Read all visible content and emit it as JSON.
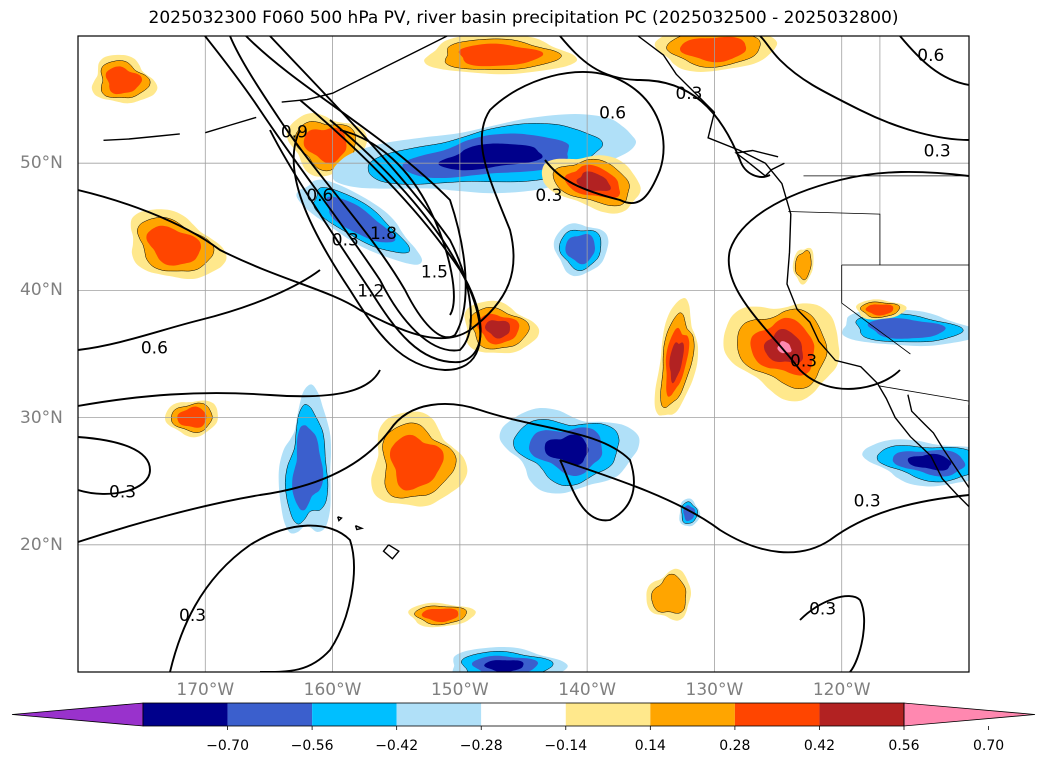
{
  "title": "2025032300 F060 500 hPa PV, river basin precipitation PC (2025032500 - 2025032800)",
  "map": {
    "lon_range": [
      -180,
      -110
    ],
    "lat_range": [
      10,
      60
    ],
    "latitude_labels": [
      {
        "lat": 50,
        "label": "50°N"
      },
      {
        "lat": 40,
        "label": "40°N"
      },
      {
        "lat": 30,
        "label": "30°N"
      },
      {
        "lat": 20,
        "label": "20°N"
      }
    ],
    "longitude_labels": [
      {
        "lon": -170,
        "label": "170°W"
      },
      {
        "lon": -160,
        "label": "160°W"
      },
      {
        "lon": -150,
        "label": "150°W"
      },
      {
        "lon": -140,
        "label": "140°W"
      },
      {
        "lon": -130,
        "label": "130°W"
      },
      {
        "lon": -120,
        "label": "120°W"
      }
    ],
    "contour_labels": [
      {
        "lon": -163,
        "lat": 52.5,
        "text": "0.9"
      },
      {
        "lon": -161,
        "lat": 47.5,
        "text": "0.6"
      },
      {
        "lon": -159,
        "lat": 44,
        "text": "0.3"
      },
      {
        "lon": -156,
        "lat": 44.5,
        "text": "1.8"
      },
      {
        "lon": -157,
        "lat": 40,
        "text": "1.2"
      },
      {
        "lon": -152,
        "lat": 41.5,
        "text": "1.5"
      },
      {
        "lon": -143,
        "lat": 47.5,
        "text": "0.3"
      },
      {
        "lon": -138,
        "lat": 54,
        "text": "0.6"
      },
      {
        "lon": -132,
        "lat": 55.5,
        "text": "0.3"
      },
      {
        "lon": -113,
        "lat": 58.5,
        "text": "0.6"
      },
      {
        "lon": -112.5,
        "lat": 51,
        "text": "0.3"
      },
      {
        "lon": -174,
        "lat": 35.5,
        "text": "0.6"
      },
      {
        "lon": -176.5,
        "lat": 24.2,
        "text": "0.3"
      },
      {
        "lon": -123,
        "lat": 34.5,
        "text": "0.3"
      },
      {
        "lon": -118,
        "lat": 23.5,
        "text": "0.3"
      },
      {
        "lon": -171,
        "lat": 14.5,
        "text": "0.3"
      },
      {
        "lon": -121.5,
        "lat": 15,
        "text": "0.3"
      }
    ]
  },
  "colorbar": {
    "ticks": [
      "−0.70",
      "−0.56",
      "−0.42",
      "−0.28",
      "−0.14",
      "0.14",
      "0.28",
      "0.42",
      "0.56",
      "0.70"
    ],
    "colors": [
      "#9932cc",
      "#00008b",
      "#3b5fcd",
      "#00bfff",
      "#b0e0f8",
      "#ffffff",
      "#ffe88c",
      "#ffa500",
      "#ff4500",
      "#b22222",
      "#ff88b0"
    ]
  },
  "colors": {
    "coast": "#000000",
    "grid": "#a0a0a0",
    "contour": "#000000"
  }
}
